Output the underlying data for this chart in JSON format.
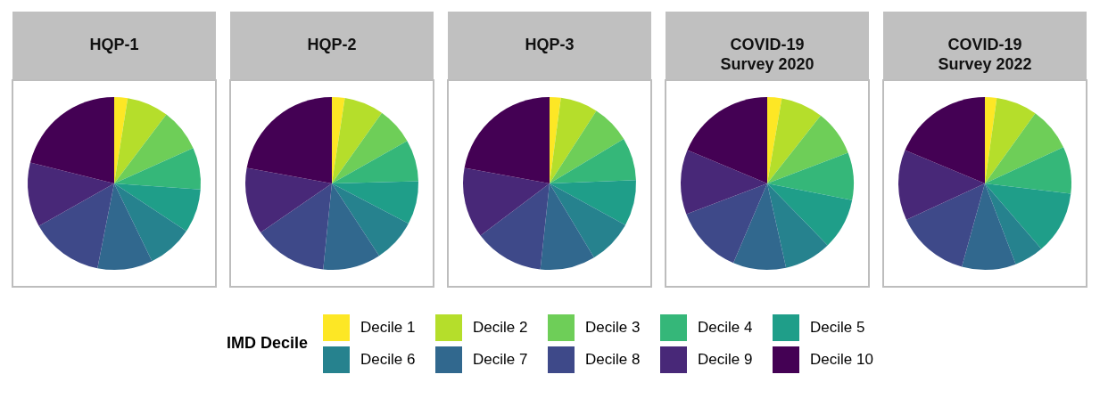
{
  "chart_data": [
    {
      "type": "pie",
      "title": "HQP-1",
      "legend": "bottom",
      "legend_title": "IMD Decile",
      "categories": [
        "Decile 1",
        "Decile 2",
        "Decile 3",
        "Decile 4",
        "Decile 5",
        "Decile 6",
        "Decile 7",
        "Decile 8",
        "Decile 9",
        "Decile 10"
      ],
      "values": [
        2.5,
        7.8,
        8.0,
        7.8,
        8.2,
        8.5,
        10.3,
        13.7,
        12.1,
        21.1
      ],
      "colors": [
        "#fde725",
        "#b5de2b",
        "#6ece58",
        "#35b779",
        "#1f9e89",
        "#26828e",
        "#31688e",
        "#3e4989",
        "#482878",
        "#440154"
      ]
    },
    {
      "type": "pie",
      "title": "HQP-2",
      "values": [
        2.4,
        7.4,
        7.0,
        7.8,
        8.1,
        8.1,
        10.8,
        13.8,
        12.5,
        22.1
      ],
      "colors": [
        "#fde725",
        "#b5de2b",
        "#6ece58",
        "#35b779",
        "#1f9e89",
        "#26828e",
        "#31688e",
        "#3e4989",
        "#482878",
        "#440154"
      ]
    },
    {
      "type": "pie",
      "title": "HQP-3",
      "values": [
        2.1,
        7.0,
        7.3,
        8.0,
        8.6,
        8.4,
        10.3,
        13.0,
        13.2,
        22.1
      ],
      "colors": [
        "#fde725",
        "#b5de2b",
        "#6ece58",
        "#35b779",
        "#1f9e89",
        "#26828e",
        "#31688e",
        "#3e4989",
        "#482878",
        "#440154"
      ]
    },
    {
      "type": "pie",
      "title": "COVID-19 Survey 2020",
      "values": [
        2.7,
        7.9,
        8.6,
        8.9,
        9.6,
        8.8,
        9.9,
        12.8,
        12.1,
        18.7
      ],
      "colors": [
        "#fde725",
        "#b5de2b",
        "#6ece58",
        "#35b779",
        "#1f9e89",
        "#26828e",
        "#31688e",
        "#3e4989",
        "#482878",
        "#440154"
      ]
    },
    {
      "type": "pie",
      "title": "COVID-19 Survey 2022",
      "values": [
        2.2,
        7.7,
        8.2,
        8.8,
        11.8,
        5.5,
        10.1,
        13.8,
        13.2,
        18.7
      ],
      "colors": [
        "#fde725",
        "#b5de2b",
        "#6ece58",
        "#35b779",
        "#1f9e89",
        "#26828e",
        "#31688e",
        "#3e4989",
        "#482878",
        "#440154"
      ]
    }
  ]
}
